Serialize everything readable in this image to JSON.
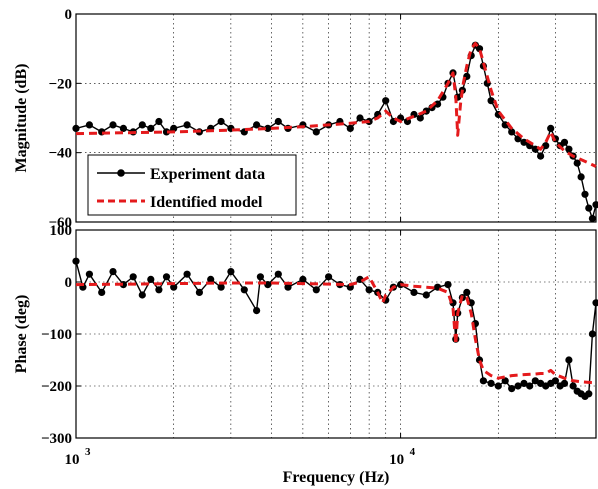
{
  "chart_data": [
    {
      "type": "line",
      "panel": "magnitude",
      "ylabel": "Magnitude (dB)",
      "xscale": "log",
      "xlim": [
        1000,
        40000
      ],
      "ylim": [
        -60,
        0
      ],
      "yticks": [
        0,
        -20,
        -40,
        -60
      ],
      "grid": true,
      "legend": "lower-left",
      "series": [
        {
          "name": "Experiment data",
          "color": "#000000",
          "style": "solid-with-dots",
          "x": [
            1000,
            1100,
            1200,
            1300,
            1400,
            1500,
            1600,
            1700,
            1800,
            1900,
            2000,
            2200,
            2400,
            2600,
            2800,
            3000,
            3300,
            3600,
            3900,
            4200,
            4500,
            5000,
            5500,
            6000,
            6500,
            7000,
            7500,
            8000,
            8500,
            9000,
            9500,
            10000,
            10500,
            11000,
            11500,
            12000,
            12500,
            13000,
            13500,
            14000,
            14500,
            15000,
            15500,
            16000,
            16500,
            17000,
            17500,
            18000,
            18500,
            19000,
            20000,
            21000,
            22000,
            23000,
            24000,
            25000,
            26000,
            27000,
            28000,
            29000,
            30000,
            31000,
            32000,
            33000,
            34000,
            35000,
            36000,
            37000,
            38000,
            39000,
            40000
          ],
          "y": [
            -33,
            -32,
            -34,
            -32,
            -33,
            -34,
            -32,
            -33,
            -31,
            -34,
            -33,
            -32,
            -34,
            -33,
            -31,
            -33,
            -34,
            -32,
            -33,
            -31,
            -33,
            -32,
            -34,
            -32,
            -31,
            -33,
            -30,
            -31,
            -29,
            -25,
            -31,
            -30,
            -31,
            -29,
            -30,
            -28,
            -27,
            -26,
            -24,
            -20,
            -17,
            -24,
            -22,
            -18,
            -12,
            -9,
            -10,
            -15,
            -20,
            -25,
            -29,
            -32,
            -34,
            -36,
            -37,
            -38,
            -39,
            -41,
            -38,
            -33,
            -36,
            -38,
            -37,
            -39,
            -41,
            -43,
            -47,
            -52,
            -56,
            -59,
            -55
          ]
        },
        {
          "name": "Identified model",
          "color": "#e41a1c",
          "style": "dashed",
          "x": [
            1000,
            1500,
            2000,
            3000,
            4000,
            5000,
            6000,
            7000,
            8000,
            8500,
            9000,
            9500,
            10000,
            11000,
            12000,
            13000,
            14000,
            14500,
            14800,
            15000,
            15300,
            15600,
            16000,
            16500,
            17000,
            17500,
            18000,
            19000,
            20000,
            22000,
            24000,
            26000,
            27000,
            28000,
            29000,
            30000,
            32000,
            34000,
            36000,
            38000,
            40000
          ],
          "y": [
            -34.5,
            -34.2,
            -34,
            -33.5,
            -33,
            -32.5,
            -32,
            -31.5,
            -31,
            -30,
            -28,
            -30,
            -31,
            -29.5,
            -28,
            -25,
            -20,
            -17,
            -24,
            -35,
            -26,
            -20,
            -15,
            -10,
            -8.5,
            -10,
            -14,
            -22,
            -28,
            -33,
            -36,
            -38,
            -39,
            -37,
            -34,
            -37,
            -39.5,
            -41,
            -42,
            -43,
            -44
          ]
        }
      ]
    },
    {
      "type": "line",
      "panel": "phase",
      "xlabel": "Frequency (Hz)",
      "ylabel": "Phase (deg)",
      "xscale": "log",
      "xlim": [
        1000,
        40000
      ],
      "ylim": [
        -300,
        100
      ],
      "yticks": [
        100,
        0,
        -100,
        -200,
        -300
      ],
      "xticks": [
        {
          "value": 1000,
          "label": "10",
          "exp": "3"
        },
        {
          "value": 10000,
          "label": "10",
          "exp": "4"
        }
      ],
      "grid": true,
      "series": [
        {
          "name": "Experiment data",
          "color": "#000000",
          "style": "solid-with-dots",
          "x": [
            1000,
            1050,
            1100,
            1200,
            1300,
            1400,
            1500,
            1600,
            1700,
            1800,
            1900,
            2000,
            2200,
            2400,
            2600,
            2800,
            3000,
            3300,
            3600,
            3700,
            3900,
            4200,
            4500,
            5000,
            5500,
            6000,
            6500,
            7000,
            7500,
            8000,
            8500,
            9000,
            9500,
            10000,
            11000,
            12000,
            13000,
            14000,
            14500,
            14800,
            15000,
            15500,
            16000,
            16500,
            17000,
            17500,
            18000,
            19000,
            20000,
            21000,
            22000,
            23000,
            24000,
            25000,
            26000,
            27000,
            28000,
            29000,
            30000,
            31000,
            32000,
            33000,
            34000,
            35000,
            36000,
            37000,
            38000,
            39000,
            40000
          ],
          "y": [
            40,
            -10,
            15,
            -20,
            20,
            -5,
            10,
            -25,
            5,
            -15,
            10,
            -10,
            15,
            -20,
            5,
            -10,
            20,
            -15,
            -55,
            10,
            -5,
            15,
            -10,
            5,
            -15,
            10,
            -5,
            -10,
            5,
            -15,
            -20,
            -35,
            -10,
            -5,
            -20,
            -25,
            -10,
            -5,
            -40,
            -110,
            -60,
            -30,
            -20,
            -40,
            -80,
            -150,
            -190,
            -195,
            -200,
            -190,
            -205,
            -200,
            -195,
            -200,
            -190,
            -195,
            -200,
            -195,
            -190,
            -200,
            -195,
            -150,
            -200,
            -210,
            -215,
            -220,
            -215,
            -100,
            -40
          ]
        },
        {
          "name": "Identified model",
          "color": "#e41a1c",
          "style": "dashed",
          "x": [
            1000,
            1500,
            2000,
            3000,
            4000,
            5000,
            6000,
            7000,
            7500,
            8000,
            8500,
            8800,
            9000,
            9500,
            10000,
            11000,
            12000,
            13000,
            14000,
            14500,
            14800,
            15000,
            15500,
            16000,
            16500,
            17000,
            17500,
            18000,
            19000,
            20000,
            22000,
            24000,
            26000,
            27000,
            28000,
            29000,
            30000,
            32000,
            34000,
            36000,
            38000,
            40000
          ],
          "y": [
            -5,
            -4,
            -3,
            -2,
            -2,
            -3,
            -4,
            -5,
            0,
            10,
            -20,
            -40,
            -25,
            -10,
            -5,
            -8,
            -10,
            -12,
            -20,
            -50,
            -120,
            -60,
            -25,
            -30,
            -60,
            -110,
            -150,
            -170,
            -180,
            -185,
            -180,
            -178,
            -177,
            -176,
            -176,
            -170,
            -178,
            -185,
            -190,
            -192,
            -193,
            -194
          ]
        }
      ]
    }
  ]
}
